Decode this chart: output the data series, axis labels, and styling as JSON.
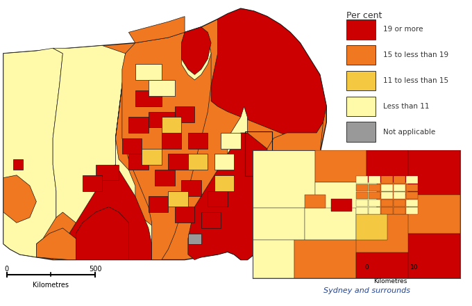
{
  "legend_title": "Per cent",
  "legend_items": [
    {
      "label": "19 or more",
      "color": "#CC0000"
    },
    {
      "label": "15 to less than 19",
      "color": "#F07820"
    },
    {
      "label": "11 to less than 15",
      "color": "#F5C842"
    },
    {
      "label": "Less than 11",
      "color": "#FFFAAA"
    },
    {
      "label": "Not applicable",
      "color": "#999999"
    }
  ],
  "inset_label": "Sydney and surrounds",
  "bg_color": "#FFFFFF",
  "border_color": "#1A1A1A"
}
